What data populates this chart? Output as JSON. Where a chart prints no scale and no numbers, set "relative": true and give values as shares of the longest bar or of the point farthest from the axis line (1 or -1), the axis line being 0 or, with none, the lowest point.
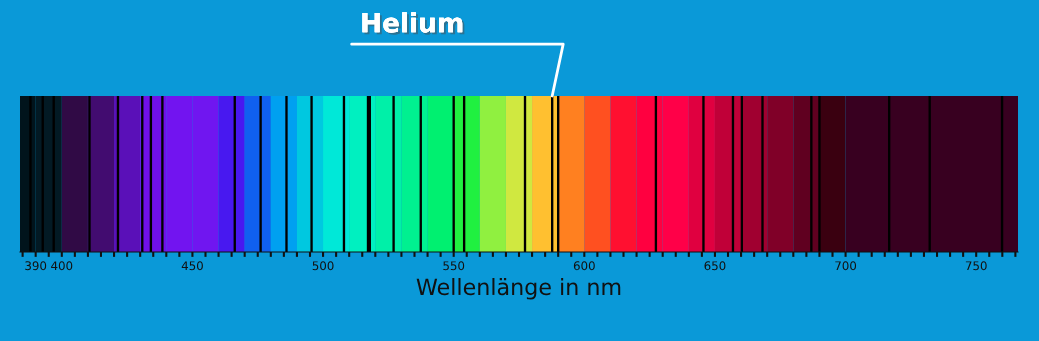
{
  "chart_data": {
    "type": "bar",
    "relative": true,
    "xlabel": "Wellenlänge in nm",
    "xlim": [
      384,
      766
    ],
    "x": [
      388.0,
      392.7,
      396.9,
      410.6,
      421.5,
      430.8,
      434.1,
      438.5,
      466.2,
      476.1,
      486.0,
      495.6,
      508.0,
      517.2,
      517.9,
      527.0,
      537.4,
      550.0,
      554.0,
      577.3,
      587.7,
      590.0,
      627.4,
      645.6,
      656.9,
      660.3,
      668.2,
      686.9,
      690.0,
      716.7,
      732.2,
      759.9
    ],
    "values": [
      1,
      1,
      1,
      1,
      1,
      1,
      1,
      1,
      1,
      1,
      1,
      1,
      1,
      1,
      1,
      1,
      1,
      1,
      1,
      1,
      1,
      1,
      1,
      1,
      1,
      1,
      1,
      1,
      1,
      1,
      1,
      1
    ],
    "color": "#000000",
    "xticks": [
      {
        "value": 385,
        "label": null
      },
      390,
      {
        "value": 395,
        "label": null
      },
      400,
      {
        "value": 405,
        "label": null
      },
      {
        "value": 410,
        "label": null
      },
      {
        "value": 415,
        "label": null
      },
      {
        "value": 420,
        "label": null
      },
      {
        "value": 425,
        "label": null
      },
      {
        "value": 430,
        "label": null
      },
      {
        "value": 435,
        "label": null
      },
      {
        "value": 440,
        "label": null
      },
      {
        "value": 445,
        "label": null
      },
      450,
      {
        "value": 455,
        "label": null
      },
      {
        "value": 460,
        "label": null
      },
      {
        "value": 465,
        "label": null
      },
      {
        "value": 470,
        "label": null
      },
      {
        "value": 475,
        "label": null
      },
      {
        "value": 480,
        "label": null
      },
      {
        "value": 485,
        "label": null
      },
      {
        "value": 490,
        "label": null
      },
      {
        "value": 495,
        "label": null
      },
      500,
      {
        "value": 505,
        "label": null
      },
      {
        "value": 510,
        "label": null
      },
      {
        "value": 515,
        "label": null
      },
      {
        "value": 520,
        "label": null
      },
      {
        "value": 525,
        "label": null
      },
      {
        "value": 530,
        "label": null
      },
      {
        "value": 535,
        "label": null
      },
      {
        "value": 540,
        "label": null
      },
      {
        "value": 545,
        "label": null
      },
      550,
      {
        "value": 555,
        "label": null
      },
      {
        "value": 560,
        "label": null
      },
      {
        "value": 565,
        "label": null
      },
      {
        "value": 570,
        "label": null
      },
      {
        "value": 575,
        "label": null
      },
      {
        "value": 580,
        "label": null
      },
      {
        "value": 585,
        "label": null
      },
      {
        "value": 590,
        "label": null
      },
      {
        "value": 595,
        "label": null
      },
      600,
      {
        "value": 605,
        "label": null
      },
      {
        "value": 610,
        "label": null
      },
      {
        "value": 615,
        "label": null
      },
      {
        "value": 620,
        "label": null
      },
      {
        "value": 625,
        "label": null
      },
      {
        "value": 630,
        "label": null
      },
      {
        "value": 635,
        "label": null
      },
      {
        "value": 640,
        "label": null
      },
      {
        "value": 645,
        "label": null
      },
      650,
      {
        "value": 655,
        "label": null
      },
      {
        "value": 660,
        "label": null
      },
      {
        "value": 665,
        "label": null
      },
      {
        "value": 670,
        "label": null
      },
      {
        "value": 675,
        "label": null
      },
      {
        "value": 680,
        "label": null
      },
      {
        "value": 685,
        "label": null
      },
      {
        "value": 690,
        "label": null
      },
      {
        "value": 695,
        "label": null
      },
      700,
      {
        "value": 705,
        "label": null
      },
      {
        "value": 710,
        "label": null
      },
      {
        "value": 715,
        "label": null
      },
      {
        "value": 720,
        "label": null
      },
      {
        "value": 725,
        "label": null
      },
      {
        "value": 730,
        "label": null
      },
      {
        "value": 735,
        "label": null
      },
      {
        "value": 740,
        "label": null
      },
      {
        "value": 745,
        "label": null
      },
      750,
      {
        "value": 755,
        "label": null
      },
      {
        "value": 760,
        "label": null
      },
      {
        "value": 765,
        "label": null
      }
    ],
    "bands": [
      {
        "axis": "x",
        "from": 384,
        "to": 390,
        "color": "#01141c"
      },
      {
        "axis": "x",
        "from": 390,
        "to": 400,
        "color": "#031a24"
      },
      {
        "axis": "x",
        "from": 400,
        "to": 410,
        "color": "#300a45"
      },
      {
        "axis": "x",
        "from": 410,
        "to": 420,
        "color": "#420c70"
      },
      {
        "axis": "x",
        "from": 420,
        "to": 430,
        "color": "#5a10b8"
      },
      {
        "axis": "x",
        "from": 430,
        "to": 440,
        "color": "#7010e8"
      },
      {
        "axis": "x",
        "from": 440,
        "to": 450,
        "color": "#7214f0"
      },
      {
        "axis": "x",
        "from": 450,
        "to": 460,
        "color": "#7016f0"
      },
      {
        "axis": "x",
        "from": 460,
        "to": 470,
        "color": "#4818f0"
      },
      {
        "axis": "x",
        "from": 470,
        "to": 480,
        "color": "#1060f0"
      },
      {
        "axis": "x",
        "from": 480,
        "to": 490,
        "color": "#00a0f0"
      },
      {
        "axis": "x",
        "from": 490,
        "to": 500,
        "color": "#00c8e0"
      },
      {
        "axis": "x",
        "from": 500,
        "to": 510,
        "color": "#00e8d8"
      },
      {
        "axis": "x",
        "from": 510,
        "to": 520,
        "color": "#00f0c0"
      },
      {
        "axis": "x",
        "from": 520,
        "to": 530,
        "color": "#00f0a8"
      },
      {
        "axis": "x",
        "from": 530,
        "to": 540,
        "color": "#00f090"
      },
      {
        "axis": "x",
        "from": 540,
        "to": 550,
        "color": "#00f070"
      },
      {
        "axis": "x",
        "from": 550,
        "to": 560,
        "color": "#20f040"
      },
      {
        "axis": "x",
        "from": 560,
        "to": 570,
        "color": "#90f040"
      },
      {
        "axis": "x",
        "from": 570,
        "to": 580,
        "color": "#d0e840"
      },
      {
        "axis": "x",
        "from": 580,
        "to": 590,
        "color": "#ffc030"
      },
      {
        "axis": "x",
        "from": 590,
        "to": 600,
        "color": "#ff8020"
      },
      {
        "axis": "x",
        "from": 600,
        "to": 610,
        "color": "#ff5020"
      },
      {
        "axis": "x",
        "from": 610,
        "to": 620,
        "color": "#ff1030"
      },
      {
        "axis": "x",
        "from": 620,
        "to": 630,
        "color": "#ff0040"
      },
      {
        "axis": "x",
        "from": 630,
        "to": 640,
        "color": "#ff0048"
      },
      {
        "axis": "x",
        "from": 640,
        "to": 650,
        "color": "#e00040"
      },
      {
        "axis": "x",
        "from": 650,
        "to": 660,
        "color": "#c00038"
      },
      {
        "axis": "x",
        "from": 660,
        "to": 670,
        "color": "#a00030"
      },
      {
        "axis": "x",
        "from": 670,
        "to": 680,
        "color": "#800028"
      },
      {
        "axis": "x",
        "from": 680,
        "to": 690,
        "color": "#600020"
      },
      {
        "axis": "x",
        "from": 690,
        "to": 700,
        "color": "#3a0010"
      },
      {
        "axis": "x",
        "from": 700,
        "to": 766,
        "color": "#380020"
      }
    ],
    "annotations": [
      {
        "text": "Helium",
        "x": 587.7,
        "y": 1
      }
    ]
  }
}
